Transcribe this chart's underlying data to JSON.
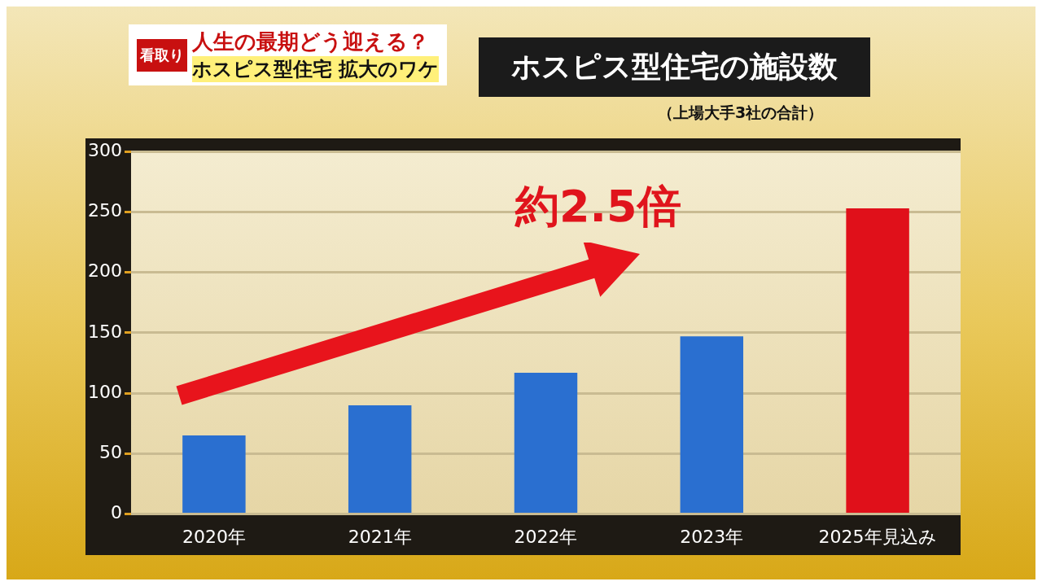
{
  "chart_data": {
    "type": "bar",
    "title": "ホスピス型住宅の施設数",
    "subtitle": "（上場大手3社の合計）",
    "categories": [
      "2020年",
      "2021年",
      "2022年",
      "2023年",
      "2025年見込み"
    ],
    "values": [
      65,
      90,
      117,
      147,
      253
    ],
    "colors": [
      "#2a6fd0",
      "#2a6fd0",
      "#2a6fd0",
      "#2a6fd0",
      "#e0101a"
    ],
    "ylim": [
      0,
      300
    ],
    "yticks": [
      0,
      50,
      100,
      150,
      200,
      250,
      300
    ],
    "grid": "y",
    "legend": false,
    "annotations": [
      "看取り",
      "人生の最期どう迎える？",
      "ホスピス型住宅 拡大のワケ",
      "約2.5倍"
    ]
  }
}
